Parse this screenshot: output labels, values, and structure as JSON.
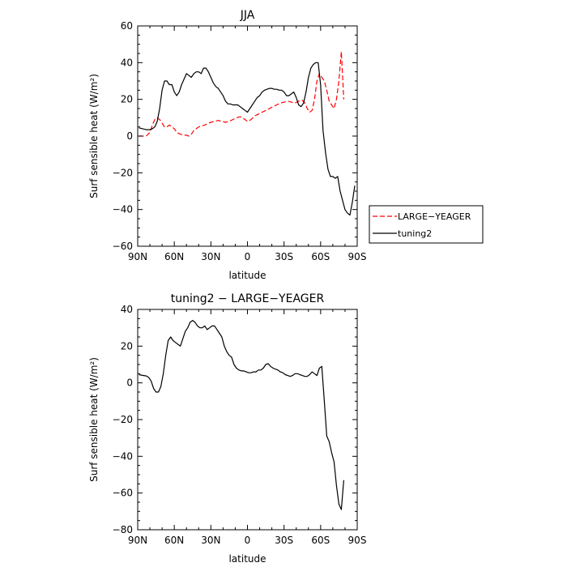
{
  "chart_data": [
    {
      "type": "line",
      "title": "JJA",
      "xlabel": "latitude",
      "ylabel": "Surf sensible heat (W/m²)",
      "xlim": [
        90,
        -90
      ],
      "ylim": [
        -60,
        60
      ],
      "xticks": [
        90,
        60,
        30,
        0,
        -30,
        -60,
        -90
      ],
      "xtick_labels": [
        "90N",
        "60N",
        "30N",
        "0",
        "30S",
        "60S",
        "90S"
      ],
      "yticks": [
        -60,
        -40,
        -20,
        0,
        20,
        40,
        60
      ],
      "ytick_labels": [
        "−60",
        "−40",
        "−20",
        "0",
        "20",
        "40",
        "60"
      ],
      "legend_position": "right, outside plot",
      "series": [
        {
          "name": "LARGE−YEAGER",
          "color": "#ff0000",
          "dash": "dashed",
          "x": [
            89,
            86,
            83,
            80,
            78,
            76,
            74,
            72,
            70,
            68,
            66,
            64,
            62,
            60,
            58,
            55,
            52,
            50,
            48,
            46,
            44,
            42,
            40,
            38,
            35,
            32,
            30,
            27,
            24,
            21,
            18,
            15,
            12,
            9,
            6,
            3,
            0,
            -3,
            -6,
            -9,
            -12,
            -15,
            -18,
            -21,
            -24,
            -27,
            -30,
            -33,
            -36,
            -39,
            -42,
            -45,
            -47,
            -49,
            -51,
            -53,
            -55,
            -57,
            -59,
            -61,
            -63,
            -65,
            -67,
            -69,
            -71,
            -73,
            -75,
            -77,
            -79
          ],
          "y": [
            0,
            0,
            0,
            2,
            6,
            9,
            10,
            9,
            7,
            5,
            5,
            6,
            5,
            4,
            2,
            1,
            0.5,
            0.5,
            0,
            1,
            3,
            4,
            5,
            5.5,
            6,
            7,
            7.5,
            8,
            8.5,
            8,
            7.5,
            8,
            9,
            10,
            10.5,
            9.5,
            8,
            9,
            11,
            12,
            13,
            14,
            15,
            16,
            17,
            18,
            18.5,
            19,
            18.5,
            18,
            19,
            19.5,
            18,
            15,
            13,
            14,
            20,
            30,
            34,
            32,
            30,
            25,
            19,
            17,
            15,
            20,
            30,
            46,
            20
          ]
        },
        {
          "name": "tuning2",
          "color": "#000000",
          "dash": "solid",
          "x": [
            89,
            86,
            83,
            80,
            78,
            76,
            74,
            72,
            70,
            68,
            66,
            64,
            62,
            60,
            58,
            56,
            54,
            52,
            50,
            48,
            46,
            44,
            42,
            40,
            38,
            36,
            34,
            32,
            30,
            28,
            26,
            24,
            22,
            20,
            18,
            16,
            14,
            12,
            10,
            8,
            6,
            4,
            2,
            0,
            -2,
            -4,
            -6,
            -8,
            -10,
            -12,
            -14,
            -16,
            -18,
            -20,
            -22,
            -24,
            -26,
            -28,
            -30,
            -32,
            -34,
            -36,
            -38,
            -40,
            -42,
            -44,
            -46,
            -48,
            -50,
            -52,
            -54,
            -56,
            -58,
            -60,
            -62,
            -64,
            -66,
            -68,
            -70,
            -72,
            -74,
            -76,
            -78,
            -80,
            -82,
            -84,
            -86,
            -88
          ],
          "y": [
            4.5,
            4,
            3.5,
            3.5,
            4,
            5,
            8,
            15,
            25,
            30,
            30,
            28,
            28,
            24,
            22,
            24,
            28,
            31,
            34,
            33,
            32,
            34,
            35,
            35,
            34,
            37,
            37,
            35,
            32,
            29,
            27,
            26,
            24,
            22,
            19,
            17.5,
            17.5,
            17,
            17,
            17,
            16,
            15,
            14,
            13,
            15,
            17,
            19,
            21,
            22,
            24,
            25,
            25.5,
            26,
            26,
            25.5,
            25.5,
            25,
            25,
            24,
            22,
            22,
            23,
            24,
            21,
            17,
            16,
            18,
            24,
            32,
            37,
            39,
            40,
            40,
            28,
            3,
            -9,
            -18,
            -22,
            -22,
            -23,
            -22,
            -30,
            -35,
            -40,
            -42,
            -43,
            -36,
            -27
          ]
        }
      ]
    },
    {
      "type": "line",
      "title": "tuning2 − LARGE−YEAGER",
      "xlabel": "latitude",
      "ylabel": "Surf sensible heat (W/m²)",
      "xlim": [
        90,
        -90
      ],
      "ylim": [
        -80,
        40
      ],
      "xticks": [
        90,
        60,
        30,
        0,
        -30,
        -60,
        -90
      ],
      "xtick_labels": [
        "90N",
        "60N",
        "30N",
        "0",
        "30S",
        "60S",
        "90S"
      ],
      "yticks": [
        -80,
        -60,
        -40,
        -20,
        0,
        20,
        40
      ],
      "ytick_labels": [
        "−80",
        "−60",
        "−40",
        "−20",
        "0",
        "20",
        "40"
      ],
      "series": [
        {
          "color": "#000000",
          "dash": "solid",
          "x": [
            89,
            87,
            85,
            83,
            81,
            79,
            77,
            75,
            73,
            71,
            69,
            67,
            65,
            63,
            61,
            59,
            57,
            55,
            53,
            51,
            49,
            47,
            45,
            43,
            41,
            39,
            37,
            35,
            33,
            31,
            29,
            27,
            25,
            23,
            21,
            19,
            17,
            15,
            13,
            11,
            9,
            7,
            5,
            3,
            1,
            -1,
            -3,
            -5,
            -7,
            -9,
            -11,
            -13,
            -15,
            -17,
            -19,
            -21,
            -23,
            -25,
            -27,
            -29,
            -31,
            -33,
            -35,
            -37,
            -39,
            -41,
            -43,
            -45,
            -47,
            -49,
            -51,
            -53,
            -55,
            -57,
            -59,
            -61,
            -63,
            -65,
            -67,
            -69,
            -71,
            -73,
            -75,
            -77,
            -79
          ],
          "y": [
            4.5,
            4.2,
            4,
            3.8,
            3,
            1,
            -3,
            -5,
            -5,
            -2,
            5,
            15,
            23,
            25,
            23,
            22,
            21,
            20,
            24,
            28,
            30,
            33,
            34,
            33,
            31,
            30,
            30,
            31,
            29,
            30,
            31,
            31,
            29,
            27,
            25,
            20,
            17,
            15,
            14,
            10,
            8,
            7,
            6.5,
            6.5,
            6,
            5.5,
            5.5,
            6,
            6,
            7,
            7,
            8,
            10,
            10.5,
            9,
            8,
            7.5,
            7,
            6,
            5.5,
            4.5,
            4,
            3.5,
            4,
            5,
            5,
            4.5,
            4,
            3.5,
            3.5,
            4.5,
            6,
            5,
            4,
            8,
            9,
            -10,
            -29,
            -32,
            -38,
            -43,
            -56,
            -66,
            -69,
            -53
          ]
        }
      ]
    }
  ]
}
